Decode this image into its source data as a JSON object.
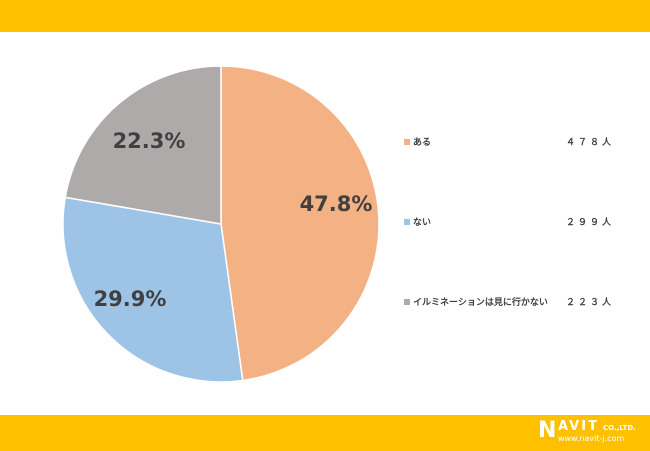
{
  "chart_data": {
    "type": "pie",
    "slices": [
      {
        "label": "ある",
        "value": 47.8,
        "data_label": "47.8%",
        "count": "４７８人",
        "color": "#F4B183"
      },
      {
        "label": "ない",
        "value": 29.9,
        "data_label": "29.9%",
        "count": "２９９人",
        "color": "#9DC3E6"
      },
      {
        "label": "イルミネーションは見に行かない",
        "value": 22.3,
        "data_label": "22.3%",
        "count": "２２３人",
        "color": "#AEAAAA"
      }
    ],
    "start_angle": "12 o'clock",
    "direction": "clockwise",
    "legend_position": "right"
  },
  "theme": {
    "bar_color": "#FFC000"
  },
  "logo": {
    "brand": "NAVIT",
    "suffix": "CO.,LTD.",
    "url": "www.navit-j.com"
  }
}
